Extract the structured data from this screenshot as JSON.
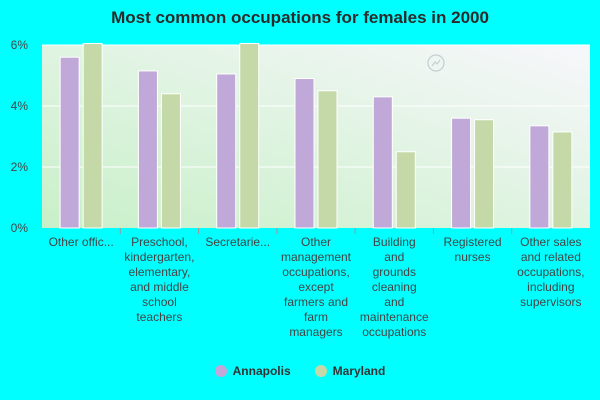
{
  "chart_data": {
    "type": "bar",
    "title": "Most common occupations for females in 2000",
    "categories": [
      "Other offic...",
      "Preschool, kindergarten, elementary, and middle school teachers",
      "Secretarie...",
      "Other management occupations, except farmers and farm managers",
      "Building and grounds cleaning and maintenance occupations",
      "Registered nurses",
      "Other sales and related occupations, including supervisors"
    ],
    "category_lines": [
      [
        "Other offic..."
      ],
      [
        "Preschool,",
        "kindergarten,",
        "elementary,",
        "and middle",
        "school",
        "teachers"
      ],
      [
        "Secretarie..."
      ],
      [
        "Other",
        "management",
        "occupations,",
        "except",
        "farmers and",
        "farm",
        "managers"
      ],
      [
        "Building",
        "and",
        "grounds",
        "cleaning",
        "and",
        "maintenance",
        "occupations"
      ],
      [
        "Registered",
        "nurses"
      ],
      [
        "Other sales",
        "and related",
        "occupations,",
        "including",
        "supervisors"
      ]
    ],
    "series": [
      {
        "name": "Annapolis",
        "color": "#c0a8d8",
        "values": [
          5.6,
          5.15,
          5.05,
          4.9,
          4.3,
          3.6,
          3.35
        ]
      },
      {
        "name": "Maryland",
        "color": "#c5d9a8",
        "values": [
          6.05,
          4.4,
          6.05,
          4.5,
          2.5,
          3.55,
          3.15
        ]
      }
    ],
    "ylim": [
      0,
      6
    ],
    "yticks": [
      0,
      2,
      4,
      6
    ],
    "ytick_labels": [
      "0%",
      "2%",
      "4%",
      "6%"
    ],
    "grid": true,
    "legend_position": "bottom"
  }
}
